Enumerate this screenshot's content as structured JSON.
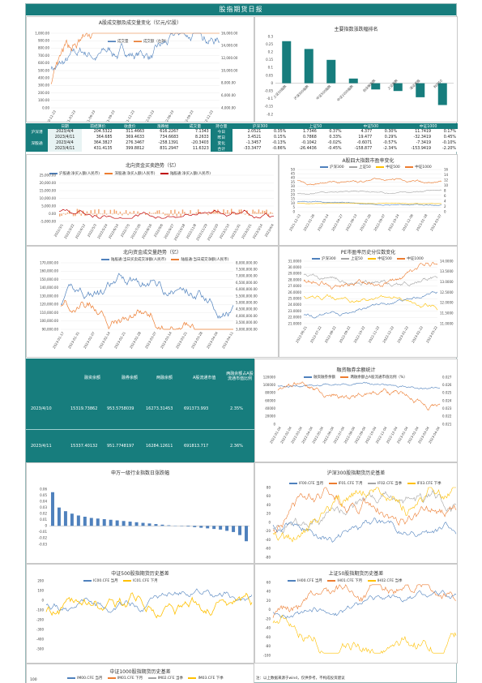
{
  "header": {
    "title": "股指期货日报"
  },
  "colors": {
    "blue": "#4f81bd",
    "orange": "#ed7d31",
    "gray": "#a5a5a5",
    "yellow": "#ffc000",
    "teal": "#177d7d",
    "darkred": "#c00000"
  },
  "quote_table": {
    "headers": [
      "日期",
      "前结算价",
      "收盘价",
      "涨跌幅",
      "成交量",
      "持仓量",
      "沪深300",
      "上证50",
      "中证500",
      "中证1000"
    ],
    "rows": [
      [
        "沪深港",
        "2023/4/4",
        "204.5322",
        "311.4663",
        "616.2267",
        "7.1343",
        "今日",
        "2.0521",
        "0.35%",
        "1.7346",
        "0.37%",
        "4.377",
        "0.30%",
        "11.7419",
        "0.17%"
      ],
      [
        "",
        "2023/4/11",
        "364.685",
        "369.4633",
        "734.6683",
        "8.2633",
        "昨日",
        "3.4521",
        "0.15%",
        "0.7868",
        "0.33%",
        "19.477",
        "0.29%",
        "-32.3419",
        "0.45%"
      ],
      [
        "深股通",
        "2023/4/4",
        "364.3827",
        "276.3467",
        "-258.1391",
        "-20.3403",
        "变化",
        "-1.3457",
        "-0.13%",
        "-0.1042",
        "-0.02%",
        "-0.6071",
        "-0.57%",
        "-7.3419",
        "-0.10%"
      ],
      [
        "",
        "2023/4/11",
        "431.4135",
        "399.8812",
        "831.2947",
        "11.6323",
        "合计",
        "-33.3477",
        "-0.86%",
        "-26.4436",
        "-0.45%",
        "-158.877",
        "-2.34%",
        "-153.9419",
        "-2.20%"
      ]
    ]
  },
  "capital_block": {
    "headers": [
      "融资余额",
      "融券余额",
      "两融余额",
      "A股流通市值",
      "两融余额占A股流通市值比例"
    ],
    "rows": [
      {
        "date": "2023/4/10",
        "values": [
          "15319.73862",
          "953.5758039",
          "16273.31453",
          "691373.993",
          "2.35%"
        ]
      },
      {
        "date": "2023/4/11",
        "values": [
          "15337.40132",
          "951.7748197",
          "16284.12611",
          "691813.717",
          "2.36%"
        ]
      }
    ]
  },
  "note": "注：以上数据来源于wind，仅供参考，不构成投资建议",
  "chart_data": [
    {
      "id": "c1",
      "type": "line",
      "title": "A股成交额及成交量变化（亿元/亿股）",
      "series": [
        {
          "name": "成交量",
          "axis": "left"
        },
        {
          "name": "成交额（右轴）",
          "axis": "right"
        }
      ],
      "y_ticks": [
        "0.00",
        "100.00",
        "200.00",
        "300.00",
        "400.00",
        "500.00",
        "600.00",
        "700.00",
        "800.00",
        "900.00",
        "1,000.00"
      ],
      "y2_ticks": [
        "4,000.00",
        "6,000.00",
        "8,000.00",
        "10,000.00",
        "12,000.00",
        "14,000.00",
        "16,000.00"
      ],
      "x_ticks": [
        "2020-12-23",
        "2021-03-23",
        "2021-06-23",
        "2021-09-23",
        "2021-12-23",
        "2022-03-23",
        "2022-06-23",
        "2022-09-23",
        "2022-12-23"
      ]
    },
    {
      "id": "c2",
      "type": "bar",
      "title": "主要指数涨跌幅排名",
      "categories": [
        "上证50指数",
        "沪深300指数",
        "中证500指数",
        "中证1000指数",
        "创业板指数",
        "上证指数",
        "深证成指",
        "科创50"
      ],
      "values": [
        0.27,
        0.22,
        0.15,
        0.03,
        -0.04,
        -0.05,
        -0.09,
        -0.14
      ],
      "y_ticks": [
        "-0.2",
        "-0.15",
        "-0.1",
        "-0.05",
        "0",
        "0.05",
        "0.1",
        "0.15",
        "0.2",
        "0.25",
        "0.3"
      ]
    },
    {
      "id": "c3",
      "type": "line",
      "title": "北向资金买卖趋势（亿）",
      "series": [
        {
          "name": "沪股通:净买入额(人民币)"
        },
        {
          "name": "深股通:净买入额(人民币)"
        },
        {
          "name": "陆股通:净买入额(人民币)"
        }
      ],
      "y_ticks": [
        "-5,000.00",
        "0.00",
        "5,000.00",
        "10,000.00",
        "15,000.00",
        "20,000.00",
        "25,000.00"
      ],
      "x_ticks": [
        "2022/3/1",
        "2022/3/22",
        "2022/4/12",
        "2022/5/3",
        "2022/5/24",
        "2022/6/14",
        "2022/7/5",
        "2022/7/26",
        "2022/8/16",
        "2022/9/6",
        "2022/9/27",
        "2022/10/18",
        "2022/11/8",
        "2022/11/29",
        "2022/12/20",
        "2023/1/10",
        "2023/1/31",
        "2023/2/21",
        "2023/3/14",
        "2023/4/4"
      ]
    },
    {
      "id": "c4",
      "type": "line",
      "title": "A股四大指数市盈率变化",
      "series": [
        {
          "name": "沪深300"
        },
        {
          "name": "上证50"
        },
        {
          "name": "中证500"
        },
        {
          "name": "中证1000"
        }
      ],
      "y_ticks": [
        "0",
        "5",
        "10",
        "15",
        "20",
        "25",
        "30",
        "35",
        "40",
        "45",
        "50"
      ],
      "y2_ticks": [
        "0",
        "2",
        "4",
        "6",
        "8",
        "10",
        "12",
        "14",
        "16"
      ],
      "x_ticks": [
        "2021-12-13",
        "2022-01-26",
        "2022-03-14",
        "2022-04-27",
        "2022-06-13",
        "2022-07-26",
        "2022-09-07",
        "2022-10-24",
        "2022-12-06",
        "2023-01-18",
        "2023-03-07"
      ]
    },
    {
      "id": "c5",
      "type": "line",
      "title": "北向资金成交量趋势（亿）",
      "series": [
        {
          "name": "陆股通:当日买卖成交净额(人民币)"
        },
        {
          "name": "陆股通:当日成交净额(人民币)"
        }
      ],
      "y_ticks": [
        "90,000.00",
        "100,000.00",
        "110,000.00",
        "120,000.00",
        "130,000.00",
        "140,000.00",
        "150,000.00",
        "160,000.00",
        "170,000.00"
      ],
      "y2_ticks": [
        "3,000,000.00",
        "3,500,000.00",
        "4,000,000.00",
        "4,500,000.00",
        "5,000,000.00",
        "5,500,000.00",
        "6,000,000.00",
        "6,500,000.00",
        "7,000,000.00",
        "7,500,000.00",
        "8,000,000.00"
      ],
      "x_ticks": [
        "2023-01-17",
        "2023-01-31",
        "2023-02-07",
        "2023-02-14",
        "2023-02-21",
        "2023-02-28",
        "2023-03-07",
        "2023-03-14",
        "2023-03-21",
        "2023-03-28",
        "2023-04-04",
        "2023-04-11"
      ]
    },
    {
      "id": "c6",
      "type": "line",
      "title": "PE市盈率历史分位数变化",
      "series": [
        {
          "name": "沪深300"
        },
        {
          "name": "上证50"
        },
        {
          "name": "中证500"
        },
        {
          "name": "中证1000"
        }
      ],
      "y_ticks": [
        "21.0000",
        "22.0000",
        "23.0000",
        "24.0000",
        "25.0000",
        "26.0000",
        "27.0000",
        "28.0000",
        "29.0000",
        "30.0000",
        "31.0000"
      ],
      "y2_ticks": [
        "11.0000",
        "11.5000",
        "12.0000",
        "12.5000",
        "13.0000",
        "13.5000",
        "14.0000"
      ],
      "x_ticks": [
        "2022-06-21",
        "2022-07-22",
        "2022-08-22",
        "2022-09-22",
        "2022-10-22",
        "2022-11-22",
        "2022-12-22",
        "2023-01-22",
        "2023-02-22",
        "2023-03-22"
      ]
    },
    {
      "id": "c7",
      "type": "line",
      "title": "融资融券余额统计",
      "series": [
        {
          "name": "融资融券余额"
        },
        {
          "name": "两融余额占A股流通市值比例（%）"
        }
      ],
      "y_ticks": [
        "0",
        "20000",
        "40000",
        "60000",
        "80000",
        "100000",
        "120000"
      ],
      "y2_ticks": [
        "0.021",
        "0.022",
        "0.023",
        "0.024",
        "0.025",
        "0.026",
        "0.027"
      ],
      "x_ticks": [
        "2022-01-04",
        "2022-02-04",
        "2022-03-04",
        "2022-04-04",
        "2022-05-04",
        "2022-06-04",
        "2022-07-04",
        "2022-08-04",
        "2022-09-04",
        "2022-10-04",
        "2022-11-04",
        "2022-12-04",
        "2023-01-04",
        "2023-02-04",
        "2023-03-04",
        "2023-04-04"
      ]
    },
    {
      "id": "c8",
      "type": "bar",
      "title": "申万一级行业指数日涨跌幅",
      "values": [
        0.055,
        0.03,
        0.024,
        0.02,
        0.017,
        0.015,
        0.013,
        0.012,
        0.011,
        0.01,
        0.009,
        0.008,
        0.007,
        0.006,
        0.005,
        0.004,
        0.003,
        0.002,
        0.001,
        0.0005,
        -0.0005,
        -0.001,
        -0.002,
        -0.003,
        -0.004,
        -0.005,
        -0.006,
        -0.008,
        -0.01,
        -0.015,
        -0.025
      ],
      "y_ticks": [
        "-0.03",
        "-0.02",
        "-0.01",
        "0",
        "0.01",
        "0.02",
        "0.03",
        "0.04",
        "0.05",
        "0.06"
      ]
    },
    {
      "id": "c9",
      "type": "line",
      "title": "沪深300股指期货历史基差",
      "series": [
        {
          "name": "IF00.CFE 当月"
        },
        {
          "name": "IF01.CFE 下月"
        },
        {
          "name": "IF02.CFE 当季"
        },
        {
          "name": "IF03.CFE 下季"
        }
      ],
      "y_ticks": [
        "-80",
        "-60",
        "-40",
        "-20",
        "0",
        "20",
        "40",
        "60",
        "80"
      ]
    },
    {
      "id": "c10",
      "type": "line",
      "title": "中证500股指期货历史基差",
      "series": [
        {
          "name": "IC00.CFE 当月"
        },
        {
          "name": "IC01.CFE 下月"
        }
      ],
      "y_ticks": [
        "-500",
        "-400",
        "-300",
        "-200",
        "-100",
        "0",
        "100",
        "200"
      ]
    },
    {
      "id": "c11",
      "type": "line",
      "title": "上证50股指期货历史基差",
      "series": [
        {
          "name": "IH00.CFE 当月"
        },
        {
          "name": "IH01.CFE 下月"
        },
        {
          "name": "IH02.CFE 当季"
        }
      ],
      "y_ticks": [
        "-100",
        "-80",
        "-60",
        "-40",
        "-20",
        "0",
        "20",
        "40",
        "60"
      ]
    },
    {
      "id": "c12",
      "type": "line",
      "title": "中证1000股指期货历史基差",
      "series": [
        {
          "name": "IM00.CFE 当月"
        },
        {
          "name": "IM01.CFE 下月"
        },
        {
          "name": "IM02.CFE 当季"
        },
        {
          "name": "IM03.CFE 下季"
        }
      ],
      "y_ticks": [
        "100"
      ]
    }
  ]
}
